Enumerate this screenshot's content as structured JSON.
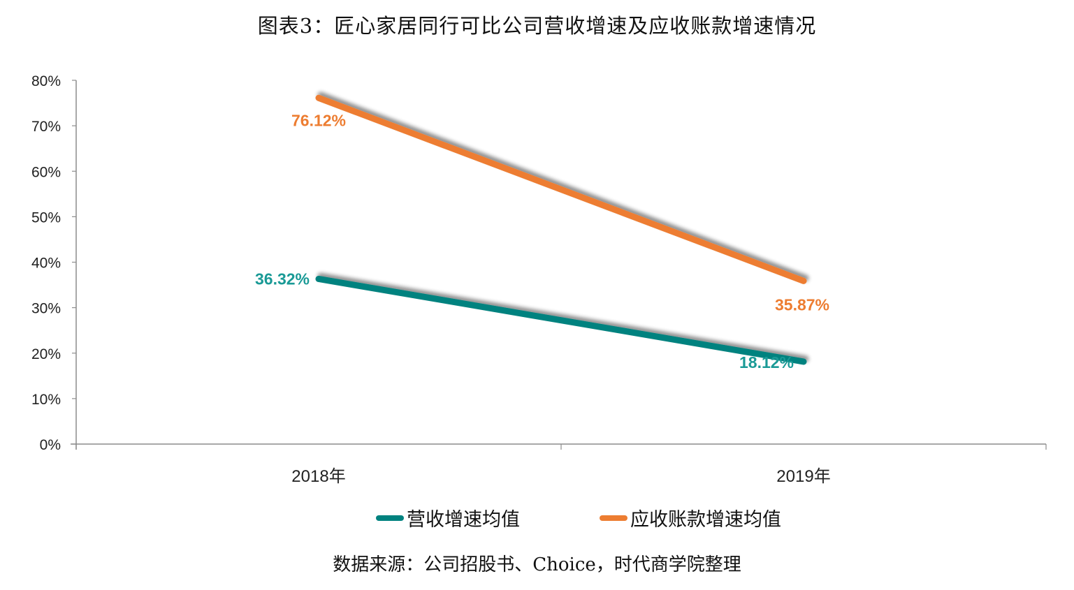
{
  "chart_data": {
    "type": "line",
    "title": "图表3：匠心家居同行可比公司营收增速及应收账款增速情况",
    "xlabel": "",
    "ylabel": "",
    "categories": [
      "2018年",
      "2019年"
    ],
    "ylim": [
      0,
      80
    ],
    "yticks": [
      0,
      10,
      20,
      30,
      40,
      50,
      60,
      70,
      80
    ],
    "ytick_labels": [
      "0%",
      "10%",
      "20%",
      "30%",
      "40%",
      "50%",
      "60%",
      "70%",
      "80%"
    ],
    "grid": false,
    "legend_position": "bottom",
    "series": [
      {
        "name": "营收增速均值",
        "values": [
          36.32,
          18.12
        ],
        "labels": [
          "36.32%",
          "18.12%"
        ],
        "color": "#00827F",
        "label_color": "#1A9A96"
      },
      {
        "name": "应收账款增速均值",
        "values": [
          76.12,
          35.87
        ],
        "labels": [
          "76.12%",
          "35.87%"
        ],
        "color": "#ED7D31",
        "label_color": "#ED7D31"
      }
    ]
  },
  "source": "数据来源：公司招股书、Choice，时代商学院整理"
}
